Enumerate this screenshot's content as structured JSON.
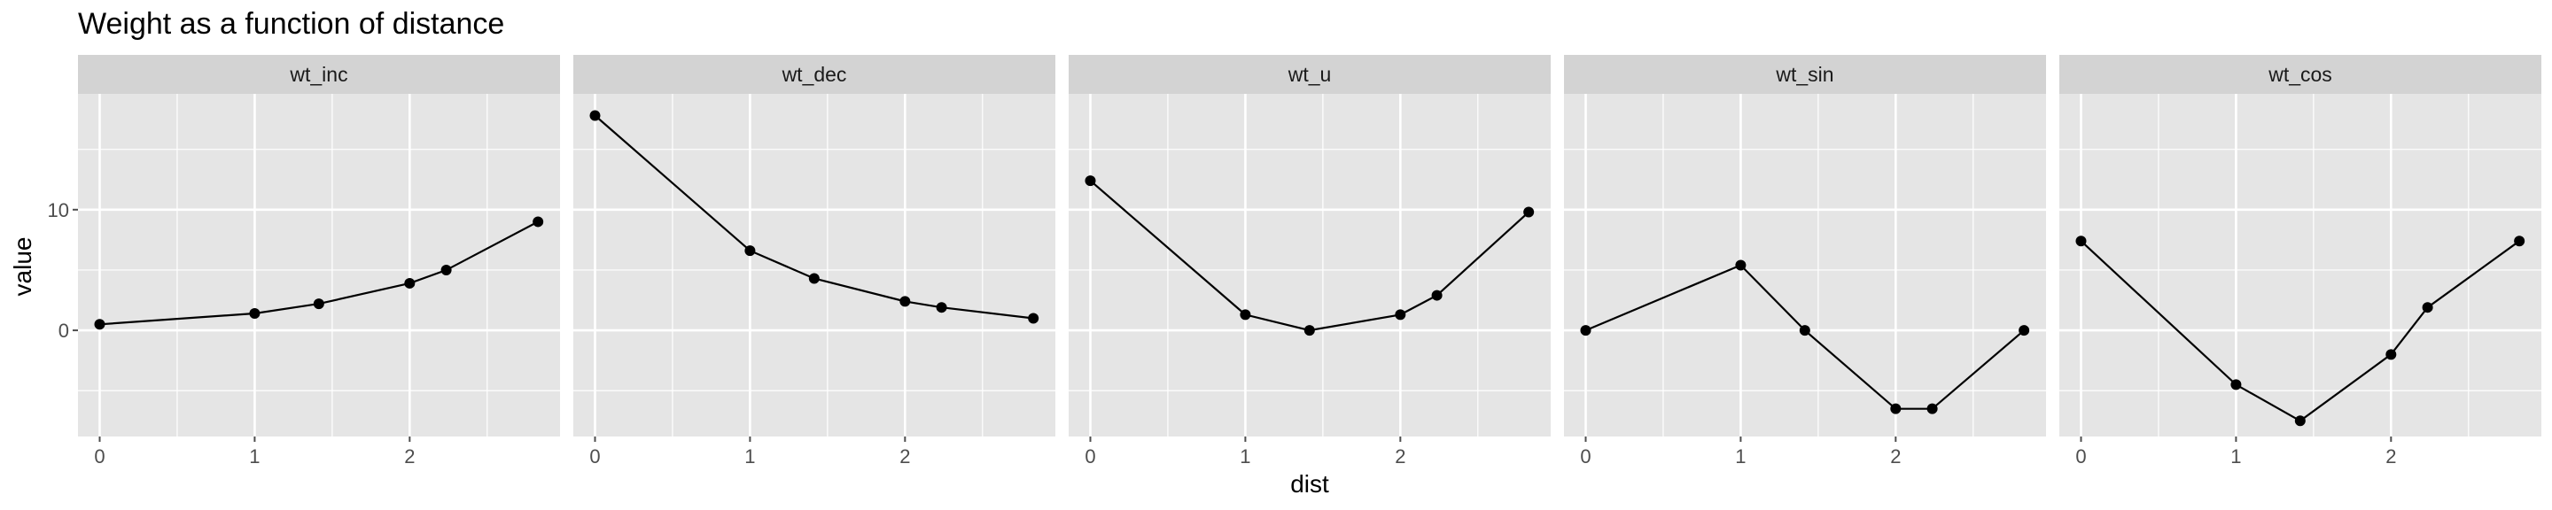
{
  "chart_data": {
    "type": "line",
    "title": "Weight as a function of distance",
    "xlabel": "dist",
    "ylabel": "value",
    "x": [
      0,
      1,
      1.414,
      2,
      2.236,
      2.828
    ],
    "xlim": [
      -0.14,
      2.97
    ],
    "ylim": [
      -8.8,
      19.6
    ],
    "x_ticks": [
      0,
      1,
      2
    ],
    "y_ticks": [
      0,
      10
    ],
    "grid": true,
    "markers": true,
    "facets": [
      {
        "label": "wt_inc",
        "values": [
          0.5,
          1.4,
          2.2,
          3.9,
          5.0,
          9.0
        ]
      },
      {
        "label": "wt_dec",
        "values": [
          17.8,
          6.6,
          4.3,
          2.4,
          1.9,
          1.0
        ]
      },
      {
        "label": "wt_u",
        "values": [
          12.4,
          1.3,
          0.0,
          1.3,
          2.9,
          9.8
        ]
      },
      {
        "label": "wt_sin",
        "values": [
          0.0,
          5.4,
          0.0,
          -6.5,
          -6.5,
          0.0
        ]
      },
      {
        "label": "wt_cos",
        "values": [
          7.4,
          -4.5,
          -7.5,
          -2.0,
          1.9,
          7.4
        ]
      }
    ]
  },
  "colors": {
    "panel_bg": "#e5e5e5",
    "strip_bg": "#d3d3d3",
    "grid": "#ffffff",
    "line": "#000000",
    "tick": "#4d4d4d"
  }
}
